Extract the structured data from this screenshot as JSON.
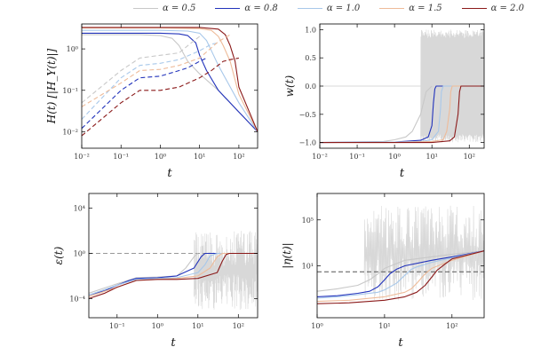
{
  "legend": [
    {
      "label": "α = 0.5",
      "color": "#c8c8c8"
    },
    {
      "label": "α = 0.8",
      "color": "#2233bb"
    },
    {
      "label": "α = 1.0",
      "color": "#a8c8ea"
    },
    {
      "label": "α = 1.5",
      "color": "#eebb99"
    },
    {
      "label": "α = 2.0",
      "color": "#8b1a1a"
    }
  ],
  "chart_data": [
    {
      "id": "H",
      "type": "line",
      "xlabel": "t",
      "ylabel": "H(t)  [|H_Y(t)|]",
      "xscale": "log",
      "yscale": "log",
      "xlim": [
        0.01,
        300
      ],
      "ylim": [
        0.004,
        4
      ],
      "xticks": [
        {
          "v": 0.01,
          "l": "10⁻²"
        },
        {
          "v": 0.1,
          "l": "10⁻¹"
        },
        {
          "v": 1,
          "l": "10⁰"
        },
        {
          "v": 10,
          "l": "10¹"
        },
        {
          "v": 100,
          "l": "10²"
        }
      ],
      "yticks": [
        {
          "v": 0.01,
          "l": "10⁻²"
        },
        {
          "v": 0.1,
          "l": "10⁻¹"
        },
        {
          "v": 1,
          "l": "10⁰"
        }
      ],
      "series": [
        {
          "color": "#c8c8c8",
          "dash": false,
          "x": [
            0.01,
            0.3,
            1,
            2,
            3,
            5,
            10,
            30,
            100,
            300
          ],
          "y": [
            2.2,
            2.2,
            2.1,
            1.8,
            1.2,
            0.5,
            0.25,
            0.1,
            0.03,
            0.01
          ]
        },
        {
          "color": "#2233bb",
          "dash": false,
          "x": [
            0.01,
            0.3,
            1,
            3,
            5,
            8,
            10,
            15,
            30,
            100,
            300
          ],
          "y": [
            2.4,
            2.4,
            2.4,
            2.3,
            2.1,
            1.4,
            0.7,
            0.3,
            0.1,
            0.03,
            0.01
          ]
        },
        {
          "color": "#a8c8ea",
          "dash": false,
          "x": [
            0.01,
            1,
            5,
            10,
            15,
            20,
            30,
            100,
            300
          ],
          "y": [
            2.8,
            2.8,
            2.7,
            2.4,
            1.6,
            0.9,
            0.4,
            0.05,
            0.01
          ]
        },
        {
          "color": "#eebb99",
          "dash": false,
          "x": [
            0.01,
            1,
            10,
            20,
            30,
            40,
            60,
            100,
            300
          ],
          "y": [
            3.2,
            3.2,
            3.1,
            2.8,
            2.0,
            1.2,
            0.5,
            0.08,
            0.01
          ]
        },
        {
          "color": "#8b1a1a",
          "dash": false,
          "x": [
            0.01,
            1,
            10,
            30,
            45,
            60,
            80,
            100,
            300
          ],
          "y": [
            3.3,
            3.3,
            3.3,
            3.0,
            2.2,
            1.2,
            0.5,
            0.12,
            0.01
          ]
        },
        {
          "color": "#c8c8c8",
          "dash": true,
          "x": [
            0.01,
            0.1,
            0.3,
            1,
            3,
            5,
            10
          ],
          "y": [
            0.05,
            0.3,
            0.6,
            0.7,
            0.8,
            1.2,
            2.0
          ]
        },
        {
          "color": "#2233bb",
          "dash": true,
          "x": [
            0.01,
            0.1,
            0.3,
            1,
            3,
            5,
            10,
            15
          ],
          "y": [
            0.012,
            0.1,
            0.2,
            0.22,
            0.3,
            0.35,
            0.5,
            0.6
          ]
        },
        {
          "color": "#a8c8ea",
          "dash": true,
          "x": [
            0.01,
            0.1,
            0.3,
            1,
            3,
            10,
            20,
            30
          ],
          "y": [
            0.02,
            0.2,
            0.4,
            0.45,
            0.55,
            0.9,
            1.3,
            1.4
          ]
        },
        {
          "color": "#eebb99",
          "dash": true,
          "x": [
            0.01,
            0.1,
            0.3,
            1,
            3,
            10,
            30,
            60
          ],
          "y": [
            0.04,
            0.15,
            0.3,
            0.32,
            0.4,
            0.6,
            1.5,
            2.2
          ]
        },
        {
          "color": "#8b1a1a",
          "dash": true,
          "x": [
            0.01,
            0.1,
            0.3,
            1,
            3,
            10,
            20,
            40,
            60,
            100
          ],
          "y": [
            0.008,
            0.05,
            0.1,
            0.1,
            0.12,
            0.2,
            0.3,
            0.5,
            0.55,
            0.6
          ]
        }
      ]
    },
    {
      "id": "w",
      "type": "line",
      "xlabel": "t",
      "ylabel": "w(t)",
      "xscale": "log",
      "yscale": "linear",
      "xlim": [
        0.01,
        250
      ],
      "ylim": [
        -1.1,
        1.1
      ],
      "xticks": [
        {
          "v": 0.01,
          "l": "10⁻²"
        },
        {
          "v": 0.1,
          "l": "10⁻¹"
        },
        {
          "v": 1,
          "l": "10⁰"
        },
        {
          "v": 10,
          "l": "10¹"
        },
        {
          "v": 100,
          "l": "10²"
        }
      ],
      "yticks": [
        {
          "v": -1,
          "l": "−1.0"
        },
        {
          "v": -0.5,
          "l": "−0.5"
        },
        {
          "v": 0,
          "l": "0.0"
        },
        {
          "v": 0.5,
          "l": "0.5"
        },
        {
          "v": 1,
          "l": "1.0"
        }
      ],
      "hline": {
        "y": 0,
        "color": "#d8d8d8",
        "dash": false
      },
      "oscillation": {
        "from": 5,
        "to": 250,
        "min": -1,
        "max": 1,
        "color": "#d8d8d8"
      },
      "series": [
        {
          "color": "#c8c8c8",
          "dash": false,
          "x": [
            0.01,
            0.5,
            1,
            2,
            3,
            5,
            7,
            10
          ],
          "y": [
            -1,
            -0.98,
            -0.95,
            -0.9,
            -0.8,
            -0.5,
            -0.1,
            0
          ]
        },
        {
          "color": "#2233bb",
          "dash": false,
          "x": [
            0.01,
            1,
            5,
            8,
            10,
            11,
            12,
            13,
            20,
            250
          ],
          "y": [
            -1,
            -0.99,
            -0.96,
            -0.9,
            -0.7,
            -0.3,
            -0.05,
            0,
            0,
            0
          ]
        },
        {
          "color": "#a8c8ea",
          "dash": false,
          "x": [
            0.01,
            1,
            5,
            10,
            15,
            17,
            18,
            20,
            250
          ],
          "y": [
            -1,
            -0.99,
            -0.98,
            -0.95,
            -0.8,
            -0.4,
            -0.1,
            0,
            0
          ]
        },
        {
          "color": "#eebb99",
          "dash": false,
          "x": [
            0.01,
            1,
            10,
            20,
            25,
            30,
            32,
            35,
            250
          ],
          "y": [
            -1,
            -1,
            -0.98,
            -0.95,
            -0.8,
            -0.4,
            -0.1,
            0,
            0
          ]
        },
        {
          "color": "#8b1a1a",
          "dash": false,
          "x": [
            0.01,
            1,
            10,
            30,
            40,
            50,
            55,
            60,
            250
          ],
          "y": [
            -1,
            -1,
            -1,
            -0.97,
            -0.9,
            -0.5,
            -0.1,
            0,
            0
          ]
        }
      ]
    },
    {
      "id": "epsilon",
      "type": "line",
      "xlabel": "t",
      "ylabel": "ε(t)",
      "xscale": "log",
      "yscale": "log",
      "xlim": [
        0.02,
        300
      ],
      "ylim": [
        2e-06,
        200000
      ],
      "xticks": [
        {
          "v": 0.1,
          "l": "10⁻¹"
        },
        {
          "v": 1,
          "l": "10⁰"
        },
        {
          "v": 10,
          "l": "10¹"
        },
        {
          "v": 100,
          "l": "10²"
        }
      ],
      "yticks": [
        {
          "v": 0.0001,
          "l": "10⁻⁴"
        },
        {
          "v": 1,
          "l": "10⁰"
        },
        {
          "v": 10000,
          "l": "10⁴"
        }
      ],
      "hline": {
        "y": 1,
        "color": "#999999",
        "dash": true
      },
      "oscillation": {
        "from": 8,
        "to": 300,
        "min": 1e-05,
        "max": 100,
        "color": "#d8d8d8"
      },
      "series": [
        {
          "color": "#c8c8c8",
          "dash": false,
          "x": [
            0.02,
            0.1,
            0.3,
            1,
            3,
            5,
            8,
            10
          ],
          "y": [
            0.0003,
            0.002,
            0.007,
            0.008,
            0.01,
            0.05,
            0.5,
            1
          ]
        },
        {
          "color": "#2233bb",
          "dash": false,
          "x": [
            0.02,
            0.05,
            0.1,
            0.2,
            0.3,
            1,
            3,
            8,
            12,
            15,
            20,
            300
          ],
          "y": [
            0.0002,
            0.0005,
            0.0015,
            0.004,
            0.006,
            0.007,
            0.01,
            0.05,
            0.5,
            1,
            1,
            1
          ]
        },
        {
          "color": "#a8c8ea",
          "dash": false,
          "x": [
            0.02,
            0.1,
            0.3,
            1,
            3,
            10,
            15,
            20,
            30,
            300
          ],
          "y": [
            0.0002,
            0.0015,
            0.005,
            0.006,
            0.007,
            0.02,
            0.1,
            0.6,
            1,
            1
          ]
        },
        {
          "color": "#eebb99",
          "dash": false,
          "x": [
            0.02,
            0.1,
            0.3,
            1,
            3,
            10,
            20,
            30,
            40,
            300
          ],
          "y": [
            0.00015,
            0.001,
            0.004,
            0.005,
            0.006,
            0.01,
            0.05,
            0.5,
            1,
            1
          ]
        },
        {
          "color": "#8b1a1a",
          "dash": false,
          "x": [
            0.02,
            0.05,
            0.1,
            0.3,
            1,
            3,
            10,
            30,
            40,
            50,
            60,
            300
          ],
          "y": [
            0.0001,
            0.0003,
            0.001,
            0.004,
            0.005,
            0.005,
            0.006,
            0.02,
            0.2,
            0.8,
            1,
            1
          ]
        }
      ]
    },
    {
      "id": "eta",
      "type": "line",
      "xlabel": "t",
      "ylabel": "|η(t)|",
      "xscale": "log",
      "yscale": "log",
      "xlim": [
        1,
        300
      ],
      "ylim": [
        0.0003,
        20000000
      ],
      "xticks": [
        {
          "v": 1,
          "l": "10⁰"
        },
        {
          "v": 10,
          "l": "10¹"
        },
        {
          "v": 100,
          "l": "10²"
        }
      ],
      "yticks": [
        {
          "v": 10,
          "l": "10¹"
        },
        {
          "v": 100000,
          "l": "10⁵"
        }
      ],
      "hline": {
        "y": 3,
        "color": "#555555",
        "dash": true
      },
      "oscillation": {
        "from": 5,
        "to": 300,
        "min": 0.01,
        "max": 2000000,
        "color": "#d8d8d8"
      },
      "series": [
        {
          "color": "#c8c8c8",
          "dash": false,
          "x": [
            1,
            2,
            4,
            6,
            8,
            10,
            20,
            50,
            100,
            300
          ],
          "y": [
            0.06,
            0.1,
            0.2,
            0.6,
            2,
            6,
            30,
            60,
            100,
            200
          ]
        },
        {
          "color": "#2233bb",
          "dash": false,
          "x": [
            1,
            2,
            4,
            6,
            8,
            10,
            12,
            15,
            20,
            50,
            100,
            300
          ],
          "y": [
            0.02,
            0.025,
            0.04,
            0.06,
            0.15,
            0.6,
            2,
            5,
            10,
            30,
            60,
            200
          ]
        },
        {
          "color": "#a8c8ea",
          "dash": false,
          "x": [
            1,
            2,
            4,
            8,
            10,
            15,
            20,
            25,
            30,
            50,
            100,
            300
          ],
          "y": [
            0.015,
            0.02,
            0.03,
            0.05,
            0.08,
            0.3,
            1.5,
            5,
            8,
            20,
            50,
            200
          ]
        },
        {
          "color": "#eebb99",
          "dash": false,
          "x": [
            1,
            3,
            10,
            20,
            25,
            30,
            40,
            50,
            100,
            300
          ],
          "y": [
            0.008,
            0.01,
            0.02,
            0.05,
            0.1,
            0.3,
            2,
            6,
            30,
            200
          ]
        },
        {
          "color": "#8b1a1a",
          "dash": false,
          "x": [
            1,
            3,
            10,
            20,
            30,
            40,
            50,
            60,
            80,
            100,
            300
          ],
          "y": [
            0.005,
            0.006,
            0.01,
            0.02,
            0.05,
            0.2,
            1,
            4,
            15,
            40,
            200
          ]
        }
      ]
    }
  ]
}
